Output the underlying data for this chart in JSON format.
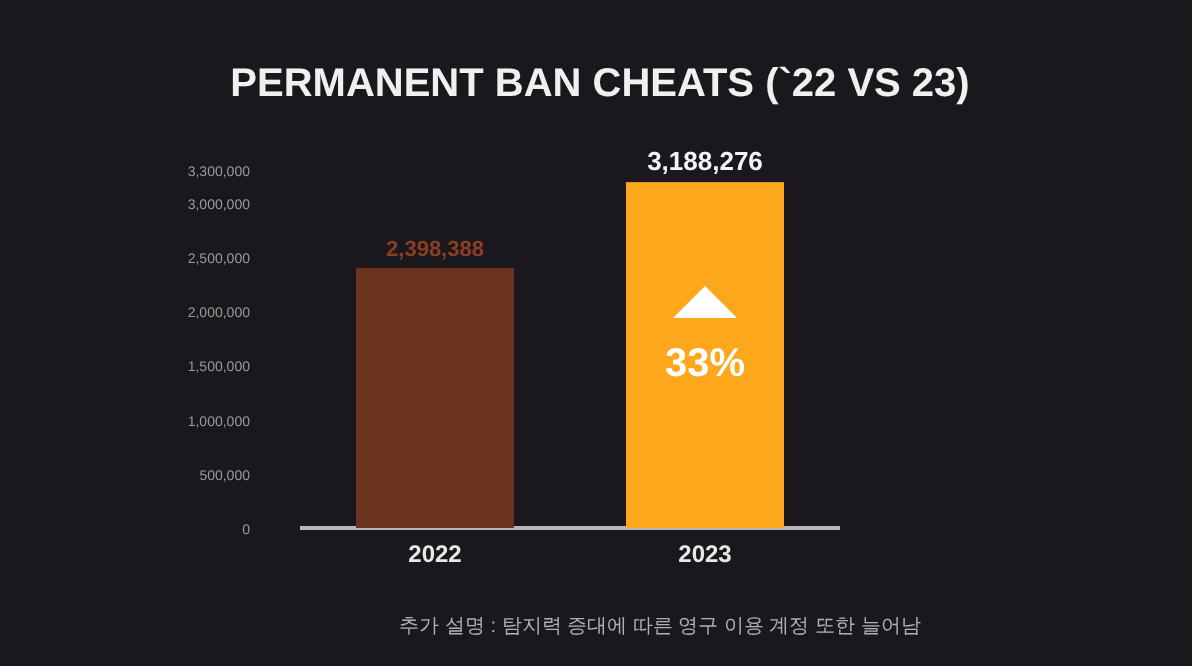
{
  "chart_data": {
    "type": "bar",
    "title": "PERMANENT BAN CHEATS (`22 VS 23)",
    "categories": [
      "2022",
      "2023"
    ],
    "values": [
      2398388,
      3188276
    ],
    "colors": [
      "#6b3420",
      "#fca71c"
    ],
    "value_labels": [
      "2,398,388",
      "3,188,276"
    ],
    "ylim": [
      0,
      3300000
    ],
    "yticks": [
      0,
      {
        "value": 500000,
        "label": "500,000"
      },
      {
        "value": 1000000,
        "label": "1,000,000"
      },
      {
        "value": 1500000,
        "label": "1,500,000"
      },
      {
        "value": 2000000,
        "label": "2,000,000"
      },
      {
        "value": 2500000,
        "label": "2,500,000"
      },
      {
        "value": 3000000,
        "label": "3,000,000"
      },
      {
        "value": 3300000,
        "label": "3,300,000"
      }
    ],
    "annotations": [
      "33%",
      "추가 설명 : 탐지력 증대에 따른 영구 이용 계정 또한 늘어남"
    ]
  }
}
